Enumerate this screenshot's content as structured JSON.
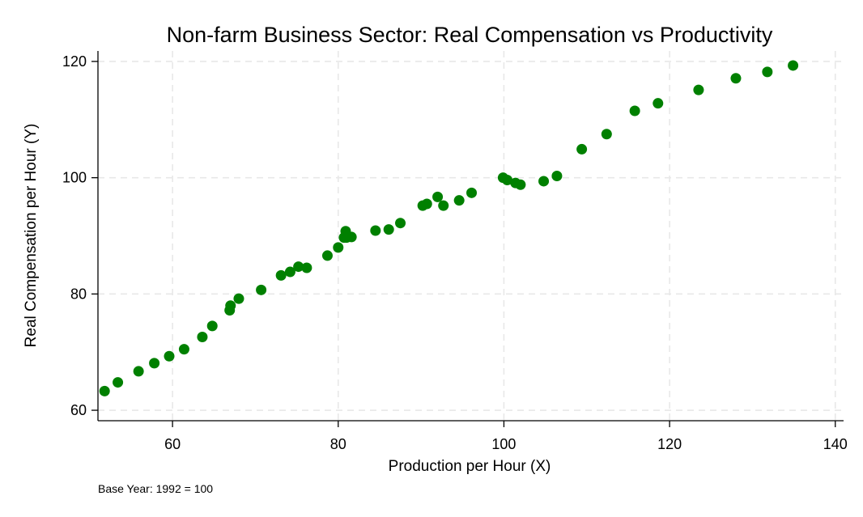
{
  "chart_data": {
    "type": "scatter",
    "title": "Non-farm Business Sector: Real Compensation vs Productivity",
    "xlabel": "Production per Hour (X)",
    "ylabel": "Real Compensation per Hour (Y)",
    "note": "Base Year: 1992 = 100",
    "xlim": [
      51,
      141
    ],
    "ylim": [
      58.2,
      121.8
    ],
    "xticks": [
      60,
      80,
      100,
      120,
      140
    ],
    "yticks": [
      60,
      80,
      100,
      120
    ],
    "grid": true,
    "marker_color": "#008000",
    "series": [
      {
        "x": [
          51.8,
          53.4,
          55.9,
          57.8,
          59.6,
          61.4,
          63.6,
          64.8,
          66.9,
          67.0,
          68.0,
          70.7,
          73.1,
          74.2,
          75.2,
          76.2,
          78.7,
          80.0,
          80.7,
          80.9,
          81.0,
          81.6,
          84.5,
          86.1,
          87.5,
          90.2,
          90.7,
          92.0,
          92.7,
          94.6,
          96.1,
          99.9,
          100.4,
          101.4,
          102.0,
          104.8,
          106.4,
          109.4,
          112.4,
          115.8,
          118.6,
          123.5,
          128.0,
          131.8,
          134.9
        ],
        "y": [
          63.3,
          64.8,
          66.7,
          68.1,
          69.3,
          70.5,
          72.6,
          74.5,
          77.2,
          78.0,
          79.2,
          80.7,
          83.2,
          83.8,
          84.7,
          84.5,
          86.6,
          88.0,
          89.7,
          90.8,
          89.7,
          89.8,
          90.9,
          91.1,
          92.2,
          95.2,
          95.5,
          96.7,
          95.2,
          96.1,
          97.4,
          100.0,
          99.6,
          99.1,
          98.8,
          99.4,
          100.3,
          104.9,
          107.5,
          111.5,
          112.8,
          115.1,
          117.1,
          118.2,
          119.3
        ]
      }
    ]
  }
}
